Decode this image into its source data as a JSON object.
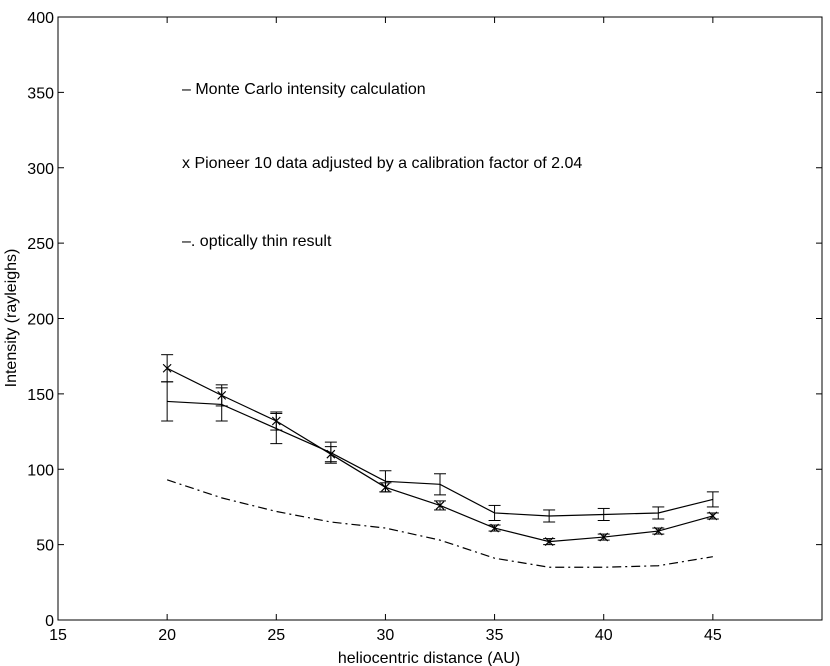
{
  "chart_data": {
    "type": "line",
    "title": "",
    "xlabel": "heliocentric distance (AU)",
    "ylabel": "Intensity (rayleighs)",
    "xlim": [
      15,
      50
    ],
    "ylim": [
      0,
      400
    ],
    "xticks": [
      15,
      20,
      25,
      30,
      35,
      40,
      45
    ],
    "yticks": [
      0,
      50,
      100,
      150,
      200,
      250,
      300,
      350,
      400
    ],
    "grid": false,
    "legend_placement": "top-left",
    "x": [
      20,
      22.5,
      25,
      27.5,
      30,
      32.5,
      35,
      37.5,
      40,
      42.5,
      45
    ],
    "series": [
      {
        "name": "Monte Carlo intensity calculation",
        "legend_label": "– Monte Carlo intensity calculation",
        "style": "solid",
        "marker": "errorbar",
        "color": "#000000",
        "values": [
          145,
          143,
          127,
          111,
          92,
          90,
          71,
          69,
          70,
          71,
          80
        ],
        "err": [
          13,
          11,
          10,
          7,
          7,
          7,
          5,
          4,
          4,
          4,
          5
        ]
      },
      {
        "name": "Pioneer 10 data adjusted by a calibration factor of 2.04",
        "legend_label": "x Pioneer 10 data adjusted by a calibration factor of 2.04",
        "style": "solid",
        "marker": "x",
        "color": "#000000",
        "values": [
          167,
          149,
          132,
          110,
          88,
          76,
          61,
          52,
          55,
          59,
          69
        ],
        "err": [
          9,
          7,
          6,
          5,
          3,
          3,
          2,
          2,
          2,
          2,
          2
        ]
      },
      {
        "name": "optically thin result",
        "legend_label": "–. optically thin result",
        "style": "dashdot",
        "marker": "none",
        "color": "#000000",
        "values": [
          93,
          81,
          72,
          65,
          61,
          53,
          41,
          35,
          35,
          36,
          42
        ]
      }
    ]
  }
}
